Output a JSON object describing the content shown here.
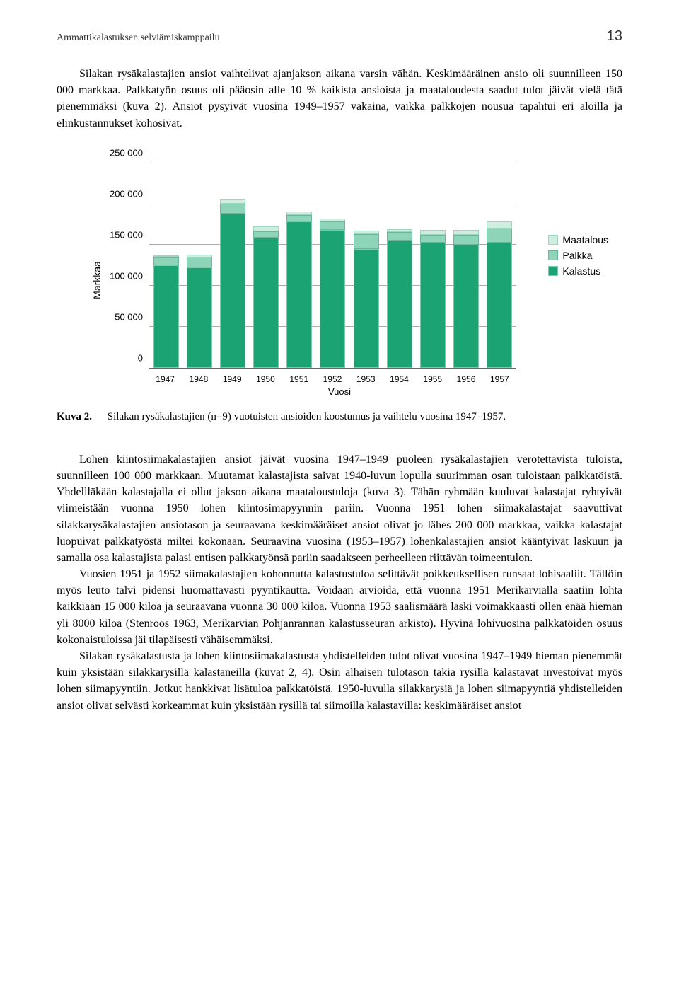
{
  "header": {
    "running_title": "Ammattikalastuksen selviämiskamppailu",
    "page_number": "13"
  },
  "intro_paragraph": "Silakan rysäkalastajien ansiot vaihtelivat ajanjakson aikana varsin vähän. Keskimääräinen ansio oli suunnilleen 150 000 markkaa. Palkkatyön osuus oli pääosin alle 10 % kaikista ansioista ja maataloudesta saadut tulot jäivät vielä tätä pienemmäksi (kuva 2). Ansiot pysyivät vuosina 1949–1957 vakaina, vaikka palkkojen nousua tapahtui eri aloilla ja elinkustannukset kohosivat.",
  "chart": {
    "y_axis_label": "Markkaa",
    "x_axis_label": "Vuosi",
    "ylim": [
      0,
      250000
    ],
    "ytick_step": 50000,
    "yticks": [
      "0",
      "50 000",
      "100 000",
      "150 000",
      "200 000",
      "250 000"
    ],
    "years": [
      "1947",
      "1948",
      "1949",
      "1950",
      "1951",
      "1952",
      "1953",
      "1954",
      "1955",
      "1956",
      "1957"
    ],
    "series": [
      "Kalastus",
      "Palkka",
      "Maatalous"
    ],
    "values": {
      "kalastus": [
        125000,
        122000,
        188000,
        158000,
        178000,
        168000,
        145000,
        155000,
        152000,
        150000,
        152000
      ],
      "palkka": [
        10000,
        12000,
        12000,
        8000,
        8000,
        10000,
        18000,
        10000,
        10000,
        12000,
        18000
      ],
      "maatalous": [
        2000,
        4000,
        6000,
        6000,
        4000,
        4000,
        4000,
        4000,
        6000,
        6000,
        8000
      ]
    },
    "colors": {
      "kalastus": "#1ba373",
      "palkka": "#8ed4b9",
      "maatalous": "#cfeee0",
      "grid": "#aaaaaa",
      "axis": "#666666"
    },
    "legend_labels": {
      "maatalous": "Maatalous",
      "palkka": "Palkka",
      "kalastus": "Kalastus"
    }
  },
  "caption": {
    "label": "Kuva 2.",
    "text": "Silakan rysäkalastajien (n=9) vuotuisten ansioiden koostumus ja vaihtelu vuosina 1947–1957."
  },
  "body_p1": "Lohen kiintosiimakalastajien ansiot jäivät vuosina 1947–1949 puoleen rysäkalastajien verotettavista tuloista, suunnilleen 100 000 markkaan. Muutamat kalastajista saivat 1940-luvun lopulla suurimman osan tuloistaan palkkatöistä. Yhdellläkään kalastajalla ei ollut jakson aikana maataloustuloja (kuva 3). Tähän ryhmään kuuluvat kalastajat ryhtyivät viimeistään vuonna 1950 lohen kiintosimapyynnin pariin. Vuonna 1951 lohen siimakalastajat saavuttivat silakkarysäkalastajien ansiotason ja seuraavana keskimääräiset ansiot olivat jo lähes 200 000 markkaa, vaikka kalastajat luopuivat palkkatyöstä miltei kokonaan. Seuraavina vuosina (1953–1957) lohenkalastajien ansiot kääntyivät laskuun ja samalla osa kalastajista palasi entisen palkkatyönsä pariin saadakseen perheelleen riittävän toimeentulon.",
  "body_p2": "Vuosien 1951 ja 1952 siimakalastajien kohonnutta kalastustuloa selittävät poikkeuksellisen runsaat lohisaaliit. Tällöin myös leuto talvi pidensi huomattavasti pyyntikautta. Voidaan arvioida, että vuonna 1951 Merikarvialla saatiin lohta kaikkiaan 15 000 kiloa ja seuraavana vuonna 30 000 kiloa. Vuonna 1953 saalismäärä laski voimakkaasti ollen enää hieman yli 8000 kiloa (Stenroos 1963, Merikarvian Pohjanrannan kalastusseuran arkisto). Hyvinä lohivuosina palkkatöiden osuus kokonaistuloissa jäi tilapäisesti vähäisemmäksi.",
  "body_p3": "Silakan rysäkalastusta ja lohen kiintosiimakalastusta yhdistelleiden tulot olivat vuosina 1947–1949 hieman pienemmät kuin yksistään silakkarysillä kalastaneilla (kuvat 2, 4). Osin alhaisen tulotason takia rysillä kalastavat investoivat myös lohen siimapyyntiin. Jotkut hankkivat lisätuloa palkkatöistä. 1950-luvulla silakkarysiä ja lohen siimapyyntiä yhdistelleiden ansiot olivat selvästi korkeammat kuin yksistään rysillä tai siimoilla kalastavilla: keskimääräiset ansiot"
}
